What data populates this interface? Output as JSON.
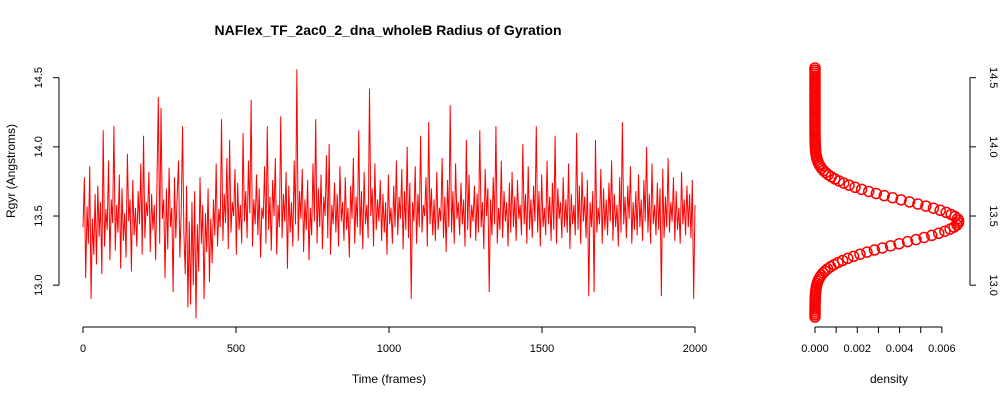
{
  "chart_data": [
    {
      "type": "line",
      "title": "NAFlex_TF_2ac0_2_dna_wholeB Radius of Gyration",
      "xlabel": "Time (frames)",
      "ylabel": "Rgyr (Angstroms)",
      "xlim": [
        0,
        2000
      ],
      "ylim": [
        12.77,
        14.57
      ],
      "x_ticks": [
        "0",
        "500",
        "1000",
        "1500",
        "2000"
      ],
      "y_ticks": [
        "13.0",
        "13.5",
        "14.0",
        "14.5"
      ],
      "series": [
        {
          "color": "#ff0000",
          "x_range": [
            0,
            2000
          ],
          "values": [
            13.42,
            13.78,
            13.05,
            13.57,
            13.3,
            13.86,
            12.9,
            13.48,
            13.22,
            13.66,
            13.15,
            13.72,
            13.35,
            13.6,
            13.08,
            14.12,
            13.28,
            13.55,
            13.4,
            13.9,
            13.18,
            13.62,
            13.45,
            14.15,
            13.25,
            13.58,
            13.38,
            13.8,
            13.12,
            13.7,
            13.32,
            13.52,
            13.2,
            13.95,
            13.46,
            13.62,
            13.1,
            13.76,
            13.36,
            13.56,
            13.28,
            13.68,
            13.44,
            13.88,
            13.22,
            14.08,
            13.34,
            13.6,
            13.5,
            13.82,
            13.24,
            13.66,
            13.4,
            13.58,
            13.18,
            13.74,
            14.36,
            13.3,
            14.28,
            13.48,
            13.62,
            13.05,
            13.7,
            13.26,
            13.85,
            13.42,
            13.56,
            12.95,
            13.78,
            13.34,
            13.64,
            13.9,
            13.2,
            13.52,
            14.15,
            13.38,
            13.08,
            13.72,
            12.84,
            13.46,
            12.86,
            13.6,
            13.0,
            13.68,
            12.76,
            13.44,
            13.1,
            13.78,
            13.3,
            13.58,
            12.9,
            13.52,
            13.24,
            13.7,
            13.02,
            13.48,
            13.16,
            13.62,
            13.36,
            13.88,
            13.28,
            13.55,
            13.42,
            14.2,
            13.32,
            13.66,
            13.45,
            13.92,
            13.26,
            14.05,
            13.38,
            13.6,
            13.5,
            13.84,
            13.22,
            13.74,
            13.4,
            13.58,
            13.3,
            14.1,
            13.46,
            13.68,
            13.34,
            13.9,
            13.52,
            14.34,
            13.28,
            13.62,
            13.44,
            13.8,
            13.36,
            13.7,
            13.2,
            13.56,
            13.48,
            13.86,
            13.3,
            14.15,
            13.4,
            13.64,
            13.25,
            13.76,
            13.5,
            13.92,
            13.22,
            13.58,
            13.42,
            14.22,
            13.34,
            13.66,
            13.46,
            13.82,
            13.12,
            13.72,
            13.38,
            13.6,
            13.28,
            13.9,
            13.44,
            14.56,
            13.32,
            13.68,
            13.48,
            13.84,
            13.24,
            13.62,
            13.4,
            13.76,
            13.18,
            13.56,
            13.36,
            13.88,
            13.46,
            14.2,
            13.3,
            13.7,
            13.42,
            13.8,
            13.26,
            13.64,
            13.5,
            13.94,
            13.34,
            14.02,
            13.22,
            13.58,
            13.44,
            13.74,
            13.38,
            13.66,
            13.28,
            13.86,
            13.46,
            13.6,
            13.32,
            13.78,
            13.4,
            13.56,
            13.2,
            13.72,
            13.48,
            13.92,
            13.3,
            13.64,
            13.42,
            14.12,
            13.36,
            13.68,
            13.26,
            13.82,
            13.44,
            13.58,
            13.34,
            14.42,
            13.5,
            13.7,
            13.28,
            13.88,
            13.4,
            13.62,
            13.46,
            13.76,
            13.32,
            13.66,
            13.38,
            13.6,
            13.22,
            13.8,
            13.44,
            13.56,
            13.3,
            13.72,
            13.42,
            13.9,
            13.36,
            13.64,
            13.48,
            13.84,
            13.26,
            13.68,
            13.4,
            14.0,
            13.34,
            13.74,
            12.9,
            13.6,
            13.46,
            13.86,
            13.3,
            13.66,
            13.42,
            14.08,
            13.38,
            13.58,
            13.5,
            13.78,
            13.28,
            14.18,
            13.44,
            13.7,
            13.36,
            13.62,
            13.32,
            13.82,
            13.4,
            13.56,
            13.46,
            13.92,
            13.34,
            13.64,
            13.24,
            13.76,
            13.42,
            14.3,
            13.38,
            13.68,
            13.3,
            13.88,
            13.48,
            13.6,
            13.36,
            13.74,
            13.44,
            13.62,
            13.28,
            14.05,
            13.4,
            13.8,
            13.34,
            13.58,
            13.46,
            13.72,
            13.32,
            13.66,
            13.38,
            14.12,
            13.42,
            13.6,
            13.26,
            13.84,
            13.5,
            13.7,
            12.95,
            13.62,
            13.36,
            13.78,
            13.44,
            14.15,
            13.3,
            13.56,
            13.4,
            13.9,
            13.34,
            13.68,
            13.46,
            13.6,
            13.28,
            13.74,
            13.38,
            13.82,
            13.42,
            13.64,
            13.32,
            13.76,
            13.48,
            13.58,
            13.36,
            14.02,
            13.44,
            13.66,
            13.3,
            13.86,
            13.4,
            13.62,
            13.34,
            13.72,
            13.46,
            14.15,
            13.38,
            13.68,
            13.28,
            13.8,
            13.42,
            13.56,
            13.36,
            13.9,
            13.44,
            13.64,
            13.32,
            13.74,
            13.4,
            14.08,
            13.3,
            13.7,
            13.48,
            13.6,
            13.34,
            13.78,
            13.42,
            13.62,
            13.38,
            13.88,
            13.26,
            13.66,
            13.44,
            13.58,
            13.36,
            14.1,
            13.4,
            13.72,
            13.3,
            13.82,
            13.46,
            13.64,
            13.34,
            13.76,
            12.92,
            13.6,
            13.42,
            13.68,
            12.95,
            14.05,
            13.38,
            13.56,
            13.44,
            13.84,
            13.3,
            13.7,
            13.4,
            13.62,
            13.36,
            13.74,
            13.46,
            13.9,
            13.32,
            13.66,
            13.42,
            13.58,
            13.28,
            13.78,
            13.38,
            14.18,
            13.44,
            13.64,
            13.34,
            13.72,
            13.48,
            13.86,
            13.3,
            13.6,
            13.4,
            13.68,
            13.36,
            13.8,
            13.42,
            13.62,
            13.32,
            13.76,
            13.46,
            14.0,
            13.38,
            13.66,
            13.3,
            13.88,
            13.44,
            13.58,
            13.36,
            13.74,
            13.4,
            13.7,
            12.92,
            13.84,
            13.34,
            13.64,
            13.42,
            13.92,
            13.38,
            13.6,
            13.46,
            13.78,
            13.32,
            13.68,
            13.4,
            13.56,
            13.3,
            13.82,
            13.44,
            13.62,
            13.36,
            13.72,
            13.42,
            13.66,
            13.34,
            13.76,
            12.9,
            13.58
          ]
        }
      ]
    },
    {
      "type": "scatter",
      "xlabel": "density",
      "ylabel": "",
      "xlim": [
        0,
        0.007
      ],
      "ylim": [
        12.77,
        14.57
      ],
      "x_ticks": [
        "0.000",
        "0.002",
        "0.004",
        "0.006"
      ],
      "y_ticks": [
        "13.0",
        "13.5",
        "14.0",
        "14.5"
      ],
      "series": [
        {
          "color": "#ff0000",
          "distribution": "gaussian",
          "mean": 13.46,
          "sd": 0.155,
          "peak_density": 0.0068,
          "y_range": [
            12.77,
            14.57
          ],
          "point_count": 120
        }
      ]
    }
  ]
}
